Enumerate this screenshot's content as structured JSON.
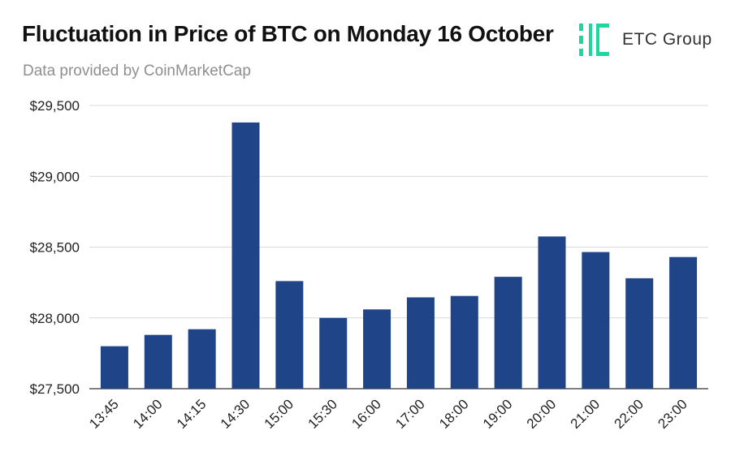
{
  "header": {
    "title": "Fluctuation in Price of BTC on Monday 16 October",
    "subtitle": "Data provided by CoinMarketCap"
  },
  "brand": {
    "name": "ETC Group",
    "icon": "etc-group-logo-icon",
    "accent_color": "#1ed6a0"
  },
  "chart_data": {
    "type": "bar",
    "title": "Fluctuation in Price of BTC on Monday 16 October",
    "categories": [
      "13:45",
      "14:00",
      "14:15",
      "14:30",
      "15:00",
      "15:30",
      "16:00",
      "17:00",
      "18:00",
      "19:00",
      "20:00",
      "21:00",
      "22:00",
      "23:00"
    ],
    "values": [
      27800,
      27880,
      27920,
      29380,
      28260,
      28000,
      28060,
      28145,
      28155,
      28290,
      28575,
      28465,
      28280,
      28430
    ],
    "ylim": [
      27500,
      29500
    ],
    "yticks": [
      27500,
      28000,
      28500,
      29000,
      29500
    ],
    "ytick_labels": [
      "$27,500",
      "$28,000",
      "$28,500",
      "$29,000",
      "$29,500"
    ],
    "xlabel": "",
    "ylabel": "",
    "bar_color": "#1f4488",
    "grid": true,
    "legend": "none"
  }
}
